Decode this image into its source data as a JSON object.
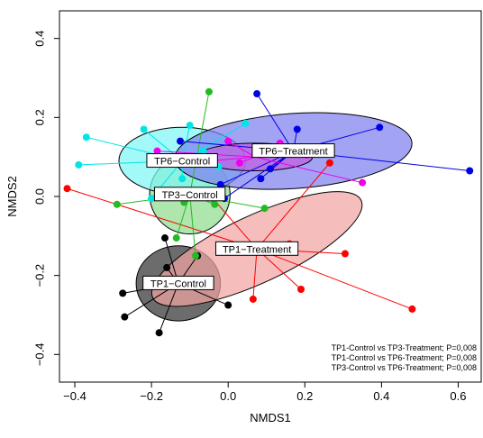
{
  "chart_data": {
    "type": "scatter",
    "title": "",
    "xlabel": "NMDS1",
    "ylabel": "NMDS2",
    "xlim": [
      -0.44,
      0.66
    ],
    "ylim": [
      -0.47,
      0.47
    ],
    "xticks": [
      -0.4,
      -0.2,
      0.0,
      0.2,
      0.4,
      0.6
    ],
    "yticks": [
      -0.4,
      -0.2,
      0.0,
      0.2,
      0.4
    ],
    "xtick_labels": [
      "−0.4",
      "−0.2",
      "0.0",
      "0.2",
      "0.4",
      "0.6"
    ],
    "ytick_labels": [
      "−0.4",
      "−0.2",
      "0.0",
      "0.2",
      "0.4"
    ],
    "grid": false,
    "groups": [
      {
        "label": "TP1−Control",
        "color": "#000000",
        "fill": "#333333",
        "centroid": [
          -0.13,
          -0.22
        ],
        "ellipse": {
          "rx": 0.11,
          "ry": 0.095,
          "angle": 0
        },
        "points": [
          [
            -0.165,
            -0.105
          ],
          [
            -0.16,
            -0.18
          ],
          [
            -0.275,
            -0.245
          ],
          [
            -0.27,
            -0.305
          ],
          [
            -0.18,
            -0.345
          ],
          [
            -0.08,
            -0.15
          ],
          [
            0.0,
            -0.275
          ]
        ]
      },
      {
        "label": "TP1−Treatment",
        "color": "#ff0000",
        "fill": "#f2a3a3",
        "centroid": [
          0.075,
          -0.133
        ],
        "ellipse": {
          "rx": 0.3,
          "ry": 0.085,
          "angle": -25
        },
        "points": [
          [
            -0.42,
            0.02
          ],
          [
            -0.04,
            -0.005
          ],
          [
            0.065,
            -0.26
          ],
          [
            0.16,
            -0.12
          ],
          [
            0.265,
            0.085
          ],
          [
            0.305,
            -0.145
          ],
          [
            0.19,
            -0.235
          ],
          [
            0.48,
            -0.285
          ]
        ]
      },
      {
        "label": "TP3−Control",
        "color": "#22bb22",
        "fill": "#8fdc8f",
        "centroid": [
          -0.1,
          0.005
        ],
        "ellipse": {
          "rx": 0.105,
          "ry": 0.1,
          "angle": 0
        },
        "points": [
          [
            -0.29,
            -0.02
          ],
          [
            -0.2,
            -0.005
          ],
          [
            -0.115,
            -0.015
          ],
          [
            -0.05,
            0.265
          ],
          [
            -0.035,
            -0.02
          ],
          [
            0.095,
            -0.03
          ],
          [
            -0.135,
            -0.105
          ],
          [
            -0.085,
            -0.15
          ]
        ]
      },
      {
        "label": "TP6−Control",
        "color": "#00e5e5",
        "fill": "#7ff5f5",
        "centroid": [
          -0.12,
          0.09
        ],
        "ellipse": {
          "rx": 0.165,
          "ry": 0.085,
          "angle": 0
        },
        "points": [
          [
            -0.39,
            0.08
          ],
          [
            -0.37,
            0.15
          ],
          [
            -0.22,
            0.17
          ],
          [
            -0.1,
            0.18
          ],
          [
            -0.065,
            0.115
          ],
          [
            -0.025,
            0.075
          ],
          [
            0.045,
            0.185
          ],
          [
            -0.2,
            -0.005
          ],
          [
            -0.12,
            0.045
          ]
        ]
      },
      {
        "label": "TP6−Treatment",
        "color": "#0000e6",
        "fill": "#8080f0",
        "centroid": [
          0.17,
          0.115
        ],
        "ellipse": {
          "rx": 0.31,
          "ry": 0.095,
          "angle": -4
        },
        "points": [
          [
            0.63,
            0.065
          ],
          [
            0.395,
            0.175
          ],
          [
            0.18,
            0.17
          ],
          [
            0.075,
            0.26
          ],
          [
            0.085,
            0.045
          ],
          [
            -0.02,
            0.03
          ],
          [
            -0.125,
            0.14
          ],
          [
            0.11,
            0.07
          ],
          [
            -0.01,
            -0.005
          ]
        ]
      },
      {
        "label": "TP6−Treatment",
        "color": "#ee00ee",
        "fill": "#c060e0",
        "centroid": [
          0.07,
          0.1
        ],
        "ellipse": {
          "rx": 0.15,
          "ry": 0.035,
          "angle": 0
        },
        "points": [
          [
            -0.185,
            0.115
          ],
          [
            0.0,
            0.14
          ],
          [
            0.135,
            0.135
          ],
          [
            0.205,
            0.105
          ],
          [
            0.35,
            0.035
          ],
          [
            -0.045,
            0.09
          ],
          [
            0.03,
            0.085
          ]
        ]
      }
    ],
    "annotations": [
      "TP1-Control vs TP3-Treatment; P=0,008",
      "TP1-Control vs TP6-Treatment; P=0,008",
      "TP3-Control vs TP6-Treatment; P=0,008"
    ]
  }
}
